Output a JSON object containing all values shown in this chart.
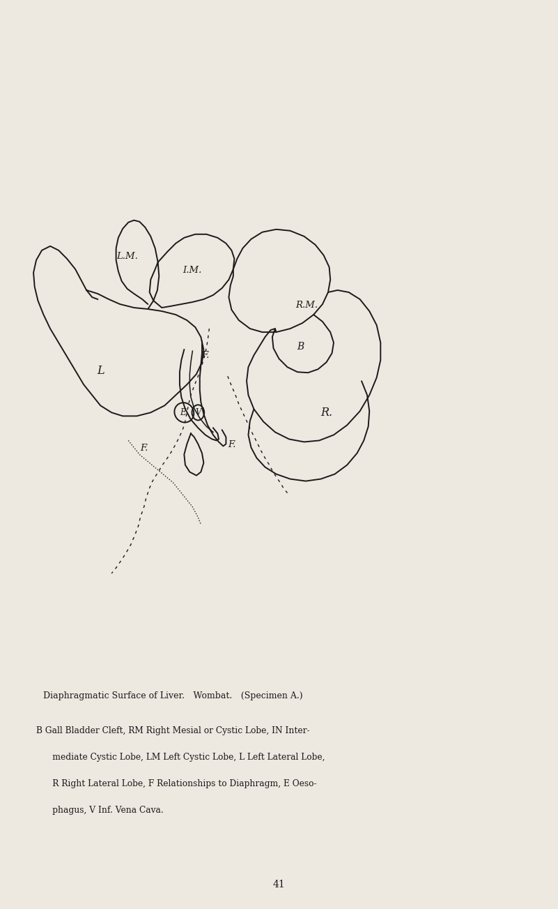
{
  "background_color": "#EDE8E0",
  "line_color": "#1a1a1a",
  "title": "Diaphragmatic Surface of Liver. Wombat. (Specimen A.)",
  "caption": "B Gall Bladder Cleft, RM Right Mesial or Cystic Lobe, IN Inter-\n      mediate Cystic Lobe, LM Left Cystic Lobe, L Left Lateral Lobe,\n      R Right Lateral Lobe, F Relationships to Diaphragm, E Oeso-\n      phagus, V Inf. Vena Cava.",
  "page_number": "41",
  "figsize": [
    8.01,
    13.03
  ],
  "dpi": 100
}
